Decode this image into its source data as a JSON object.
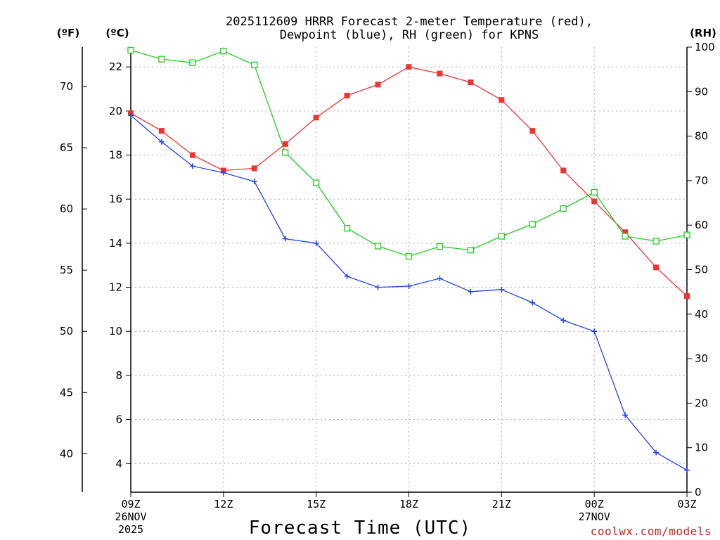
{
  "chart_data": {
    "type": "line",
    "title_line1": "2025112609 HRRR Forecast 2-meter Temperature (red),",
    "title_line2": "Dewpoint (blue), RH (green) for KPNS",
    "xlabel": "Forecast Time (UTC)",
    "credit": "coolwx.com/models",
    "unit_f": "(ºF)",
    "unit_c": "(ºC)",
    "unit_rh": "(RH)",
    "x_hours": [
      0,
      1,
      2,
      3,
      4,
      5,
      6,
      7,
      8,
      9,
      10,
      11,
      12,
      13,
      14,
      15,
      16,
      17,
      18
    ],
    "x_ticks": [
      {
        "hour": 0,
        "label": "09Z",
        "sub1": "26NOV",
        "sub2": "2025"
      },
      {
        "hour": 3,
        "label": "12Z",
        "sub1": "",
        "sub2": ""
      },
      {
        "hour": 6,
        "label": "15Z",
        "sub1": "",
        "sub2": ""
      },
      {
        "hour": 9,
        "label": "18Z",
        "sub1": "",
        "sub2": ""
      },
      {
        "hour": 12,
        "label": "21Z",
        "sub1": "",
        "sub2": ""
      },
      {
        "hour": 15,
        "label": "00Z",
        "sub1": "27NOV",
        "sub2": ""
      },
      {
        "hour": 18,
        "label": "03Z",
        "sub1": "",
        "sub2": ""
      }
    ],
    "ylim_c": [
      2.7,
      22.9
    ],
    "ylim_rh": [
      0,
      100
    ],
    "yticks_c": [
      "4",
      "6",
      "8",
      "10",
      "12",
      "14",
      "16",
      "18",
      "20",
      "22"
    ],
    "yticks_f": [
      "40",
      "45",
      "50",
      "55",
      "60",
      "65",
      "70"
    ],
    "yticks_rh": [
      "0",
      "10",
      "20",
      "30",
      "40",
      "50",
      "60",
      "70",
      "80",
      "90",
      "100"
    ],
    "series": [
      {
        "name": "2-meter Temperature",
        "unit": "C",
        "color": "#ee3333",
        "marker": "filled-square",
        "values": [
          19.9,
          19.1,
          18.0,
          17.3,
          17.4,
          18.5,
          19.7,
          20.7,
          21.2,
          22.0,
          21.7,
          21.3,
          20.5,
          19.1,
          17.3,
          15.9,
          14.5,
          12.9,
          11.6
        ]
      },
      {
        "name": "Dewpoint",
        "unit": "C",
        "color": "#2244ee",
        "marker": "plus",
        "values": [
          19.8,
          18.6,
          17.5,
          17.2,
          16.8,
          14.2,
          14.0,
          12.5,
          12.0,
          12.05,
          12.4,
          11.8,
          11.9,
          11.3,
          10.5,
          10.0,
          6.2,
          4.5,
          3.7
        ]
      },
      {
        "name": "RH",
        "unit": "%",
        "color": "#22cc22",
        "marker": "open-square",
        "values": [
          99.3,
          97.3,
          96.5,
          99.1,
          96.0,
          76.3,
          69.5,
          59.3,
          55.3,
          53.0,
          55.2,
          54.4,
          57.5,
          60.2,
          63.7,
          67.4,
          57.5,
          56.4,
          57.8
        ]
      }
    ]
  }
}
